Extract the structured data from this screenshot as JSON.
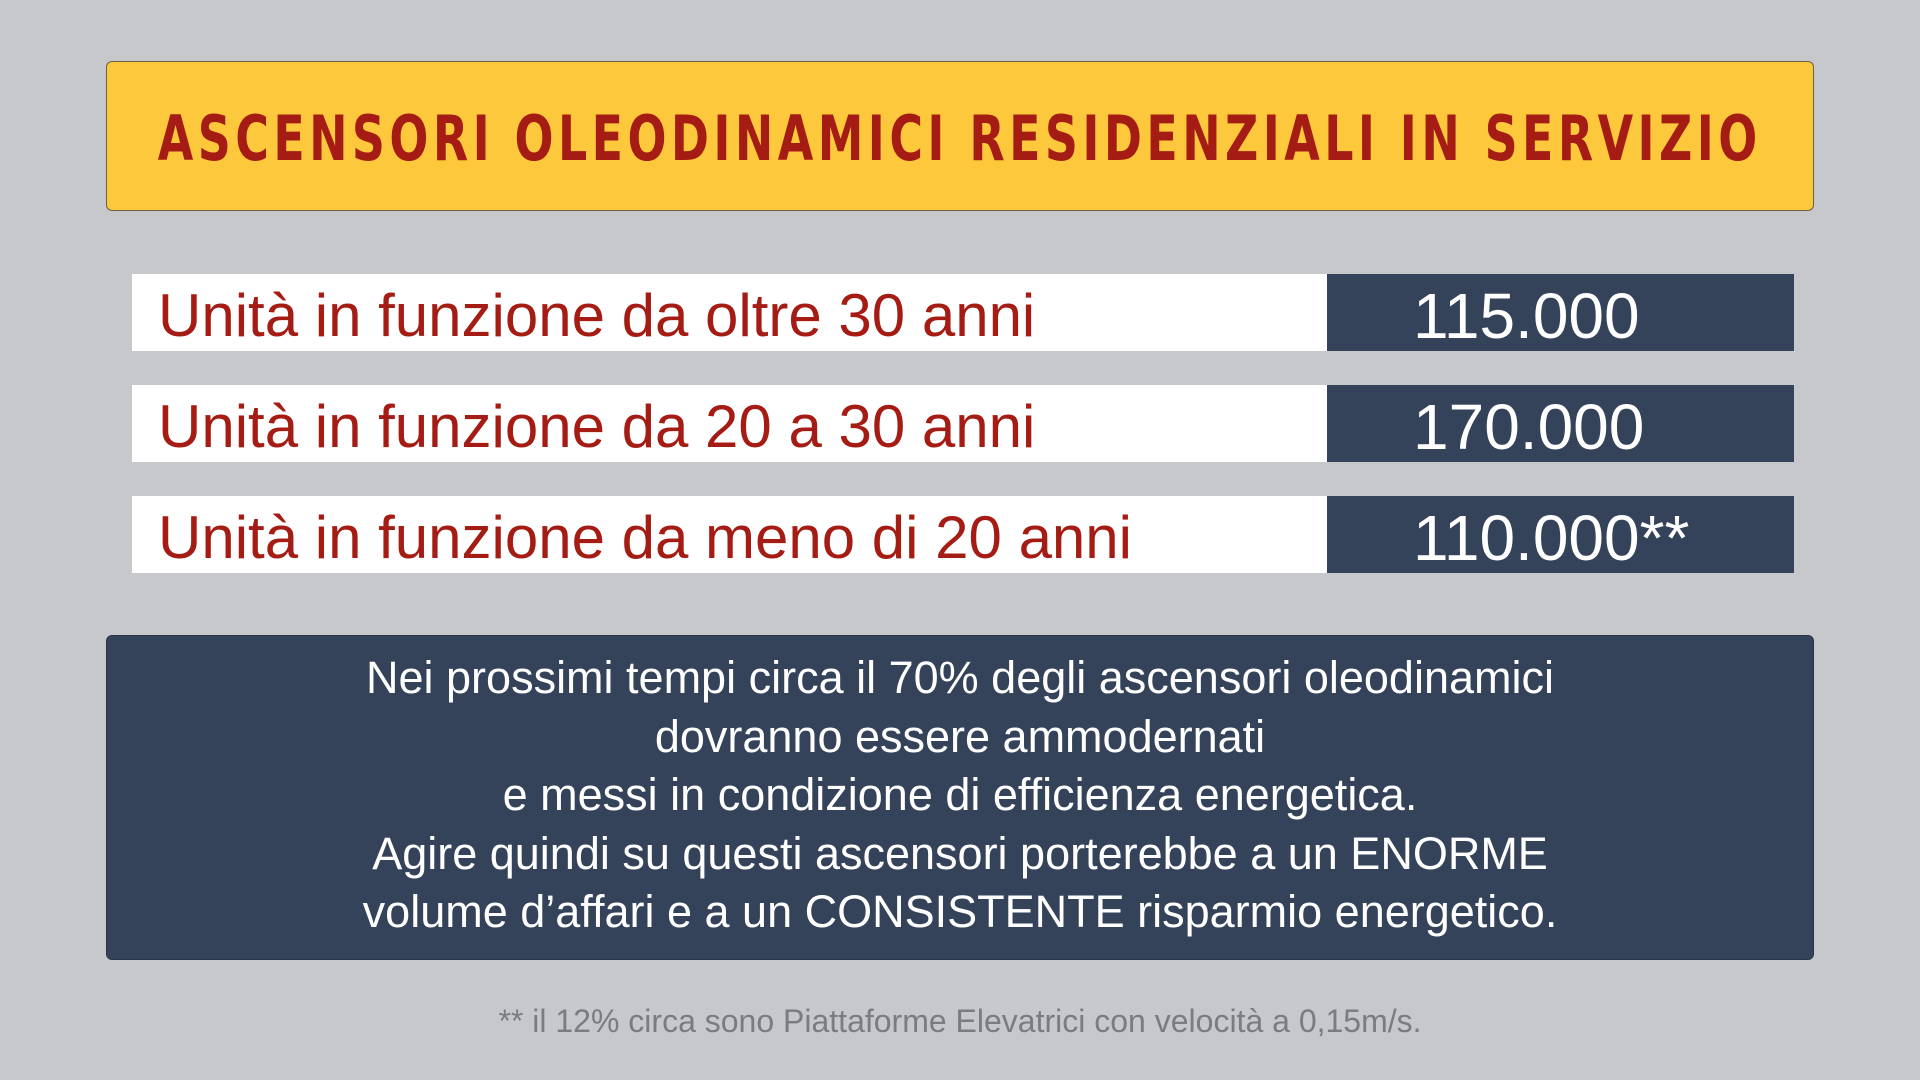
{
  "title": "ASCENSORI OLEODINAMICI RESIDENZIALI IN SERVIZIO",
  "colors": {
    "background": "#c7c8cc",
    "banner": "#fec83c",
    "accent_red": "#a51c14",
    "navy": "#35435a",
    "footnote_gray": "#7a7c82"
  },
  "stats": [
    {
      "label": "Unità in funzione da oltre 30 anni",
      "value": "115.000"
    },
    {
      "label": "Unità in funzione da 20 a 30 anni",
      "value": "170.000"
    },
    {
      "label": "Unità in funzione da meno di 20 anni",
      "value": "110.000**"
    }
  ],
  "note": {
    "lines": [
      "Nei prossimi tempi circa il 70% degli ascensori oleodinamici",
      "dovranno essere ammodernati",
      "e messi in condizione di efficienza energetica.",
      "Agire quindi su questi ascensori porterebbe a un ENORME",
      "volume d’affari e a un CONSISTENTE risparmio energetico."
    ]
  },
  "footnote": "** il 12% circa sono Piattaforme Elevatrici con velocità a 0,15m/s."
}
